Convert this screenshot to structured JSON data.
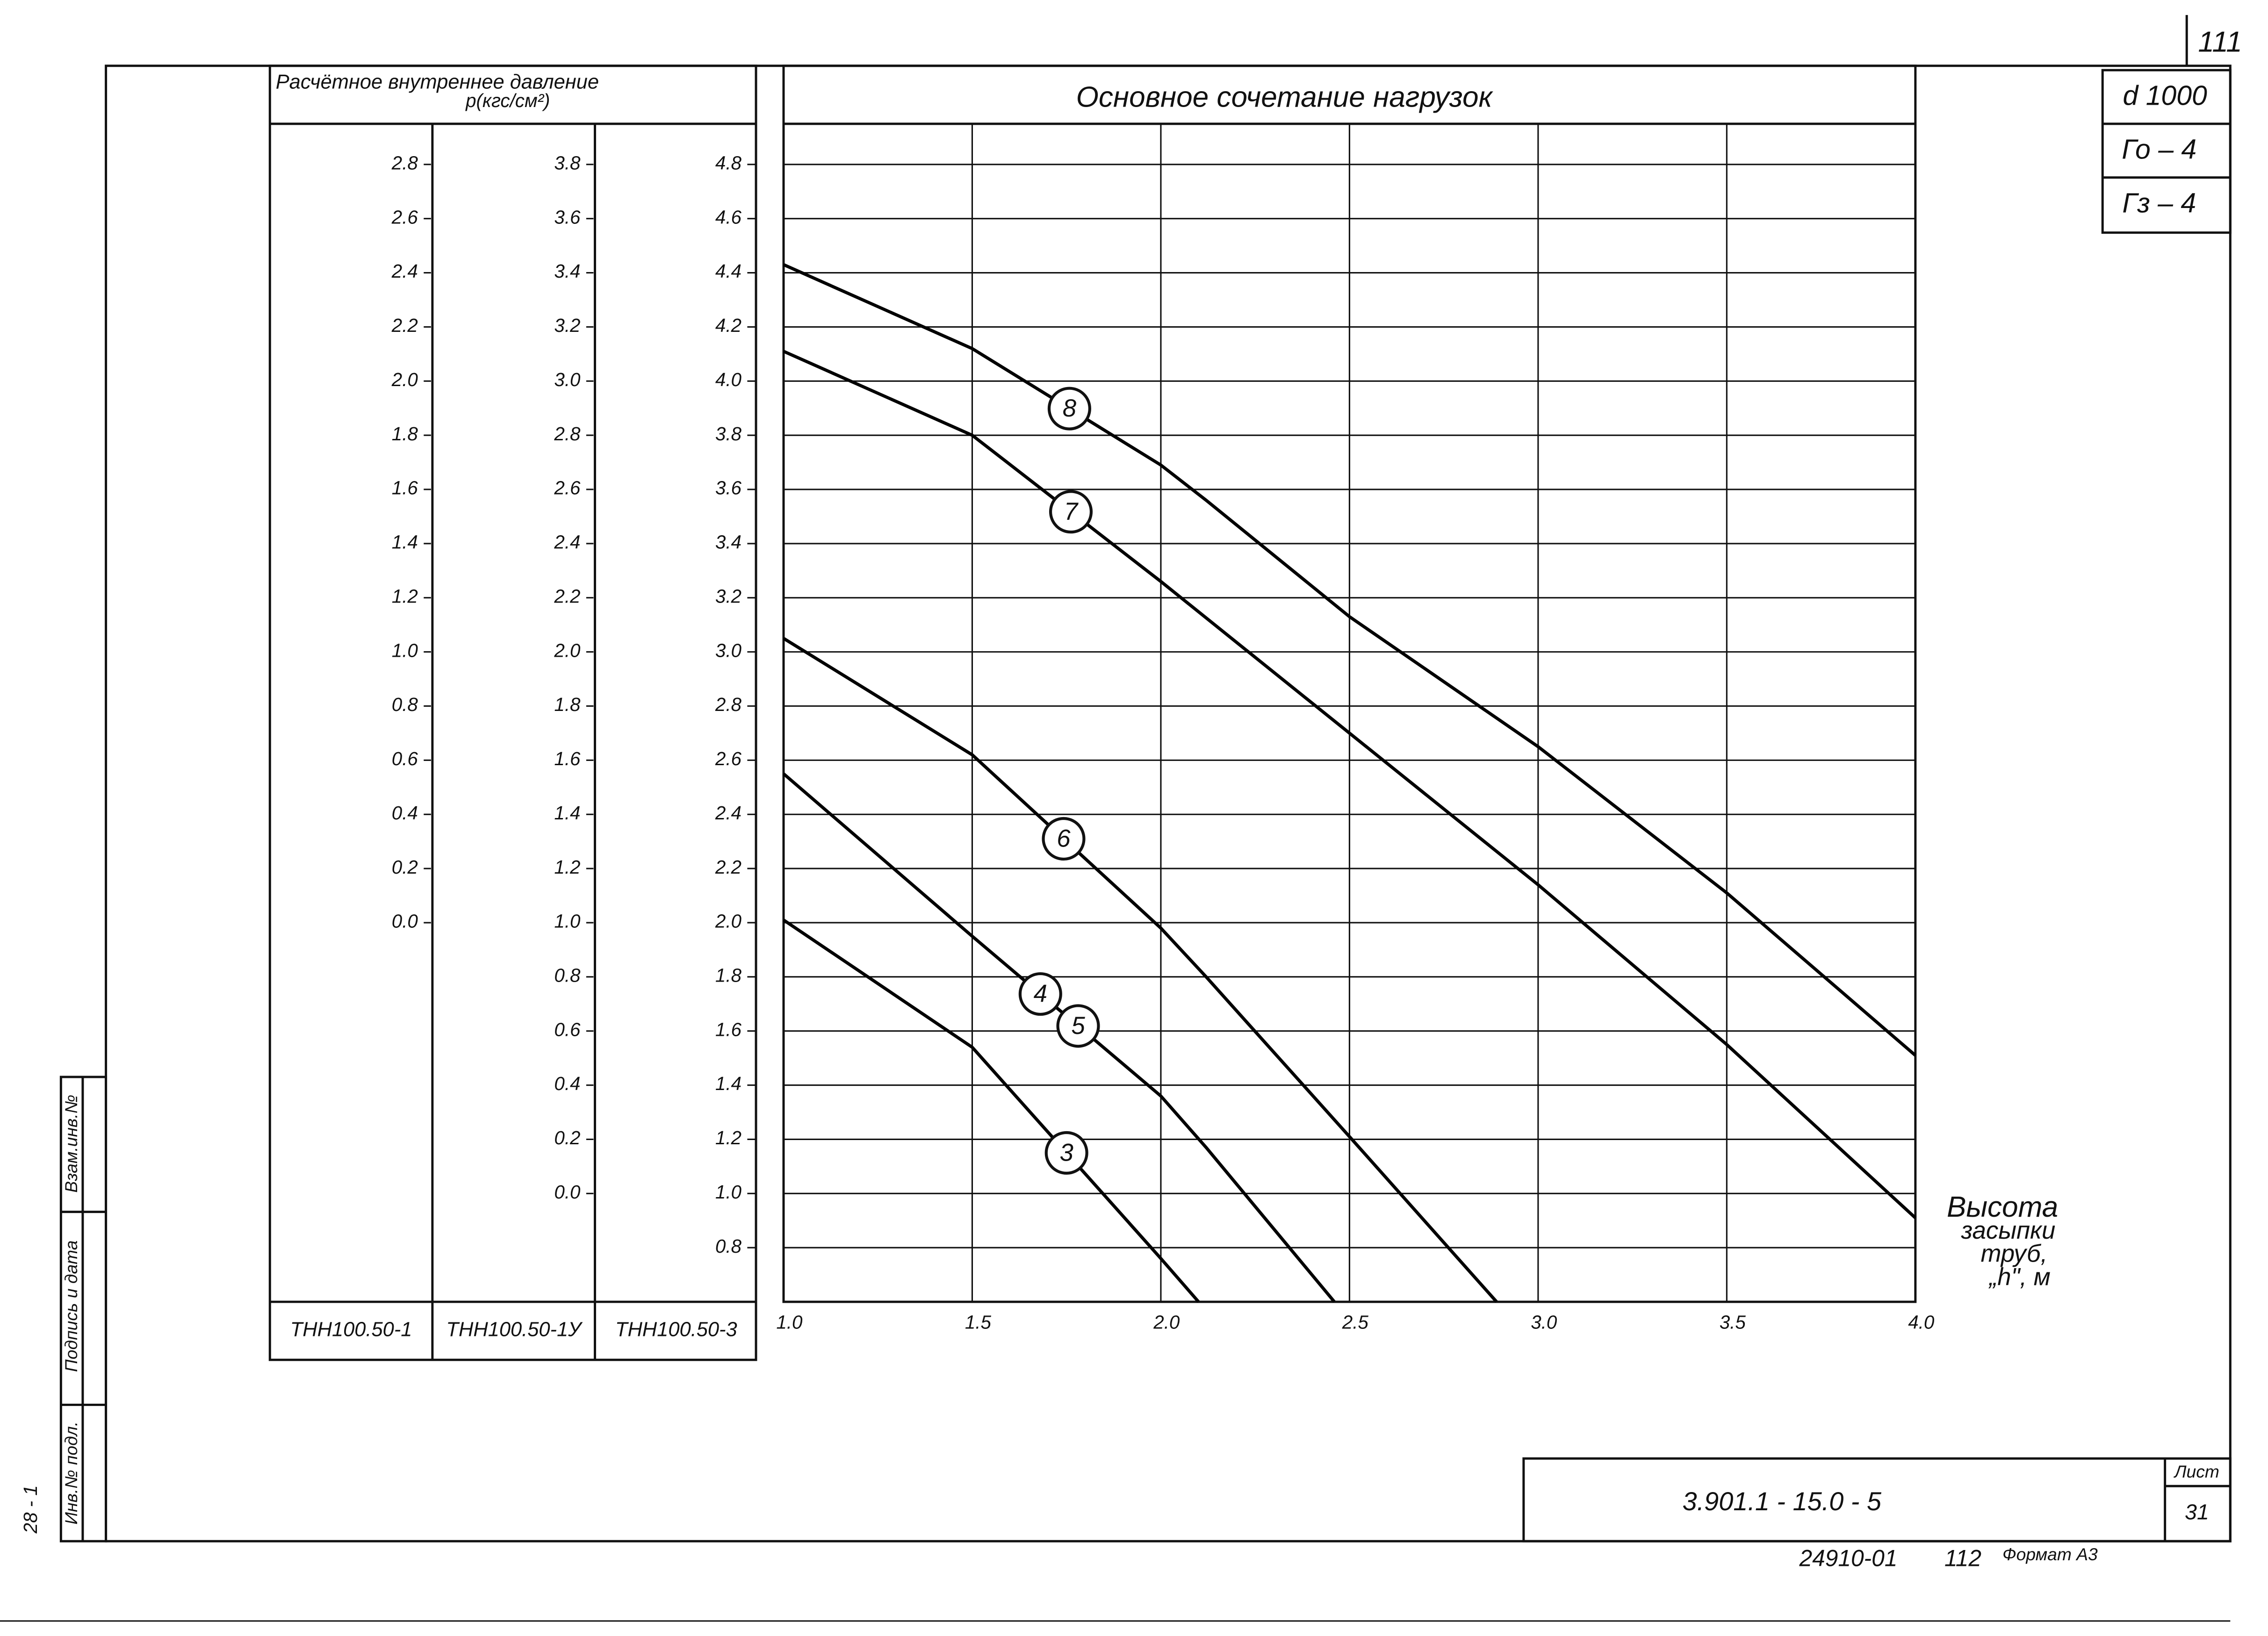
{
  "chart_data": {
    "type": "line",
    "title": "Основное сочетание нагрузок",
    "y_title": "Расчётное внутреннее давление",
    "y_unit": "p(кгс/см²)",
    "x_label_lines": [
      "Высота",
      "засыпки",
      "труб,",
      "„h\", м"
    ],
    "xlim": [
      1,
      4
    ],
    "xticks": [
      {
        "value": 1,
        "label": "1.0"
      },
      1.5,
      {
        "value": 2,
        "label": "2.0"
      },
      2.5,
      {
        "value": 3,
        "label": "3.0"
      },
      3.5,
      {
        "value": 4,
        "label": "4.0"
      }
    ],
    "ylim": [
      0.6,
      4.95
    ],
    "yticks": [
      0.8,
      {
        "value": 1,
        "label": "1.0"
      },
      1.2,
      1.4,
      1.6,
      1.8,
      {
        "value": 2,
        "label": "2.0"
      },
      2.2,
      2.4,
      2.6,
      2.8,
      {
        "value": 3,
        "label": "3.0"
      },
      3.2,
      3.4,
      3.6,
      3.8,
      {
        "value": 4,
        "label": "4.0"
      },
      4.2,
      4.4,
      4.6,
      4.8
    ],
    "y_name": "ТНН100.50-3",
    "y_scales": [
      {
        "name": "ТНН100.50-1",
        "ylim": [
          -1.4,
          2.95
        ],
        "yticks": [
          {
            "value": 0,
            "label": "0.0"
          },
          0.2,
          0.4,
          0.6,
          0.8,
          {
            "value": 1,
            "label": "1.0"
          },
          1.2,
          1.4,
          1.6,
          1.8,
          {
            "value": 2,
            "label": "2.0"
          },
          2.2,
          2.4,
          2.6,
          2.8
        ]
      },
      {
        "name": "ТНН100.50-1У",
        "ylim": [
          -0.4,
          3.95
        ],
        "yticks": [
          {
            "value": 0,
            "label": "0.0"
          },
          0.2,
          0.4,
          0.6,
          0.8,
          {
            "value": 1,
            "label": "1.0"
          },
          1.2,
          1.4,
          1.6,
          1.8,
          {
            "value": 2,
            "label": "2.0"
          },
          2.2,
          2.4,
          2.6,
          2.8,
          {
            "value": 3,
            "label": "3.0"
          },
          3.2,
          3.4,
          3.6,
          3.8
        ]
      }
    ],
    "grid": true,
    "color": "#000000",
    "series": [
      {
        "labels": [
          "3"
        ],
        "x": [
          1,
          1.5,
          2,
          2.1
        ],
        "values": [
          2.01,
          1.54,
          0.76,
          0.6
        ]
      },
      {
        "labels": [
          "4",
          "5"
        ],
        "x": [
          1,
          1.5,
          2,
          2.12,
          2.46
        ],
        "values": [
          2.55,
          1.95,
          1.36,
          1.17,
          0.6
        ]
      },
      {
        "labels": [
          "6"
        ],
        "x": [
          1,
          1.5,
          2,
          2.12,
          2.5,
          2.89
        ],
        "values": [
          3.05,
          2.62,
          1.98,
          1.8,
          1.21,
          0.6
        ]
      },
      {
        "labels": [
          "7"
        ],
        "x": [
          1,
          1.5,
          2,
          2.5,
          3,
          3.5,
          4
        ],
        "values": [
          4.11,
          3.8,
          3.26,
          2.7,
          2.14,
          1.55,
          0.91
        ]
      },
      {
        "labels": [
          "8"
        ],
        "x": [
          1,
          1.5,
          2,
          2.12,
          2.5,
          3,
          3.5,
          4
        ],
        "values": [
          4.43,
          4.12,
          3.69,
          3.56,
          3.13,
          2.65,
          2.11,
          1.51
        ]
      }
    ]
  },
  "stamp": {
    "diameter": "d 1000",
    "g0": "Го – 4",
    "g3": "Гз – 4",
    "page": "111",
    "code": "3.901.1 - 15.0 - 5",
    "sheet_label": "Лист",
    "sheet": "31"
  },
  "side": {
    "replace": "Взам.инв.№",
    "signature": "Подпись и дата",
    "inventory": "Инв.№ подл.",
    "number": "28 - 1"
  },
  "footer": {
    "sheet_code": "24910-01",
    "number": "112",
    "format": "Формат А3"
  }
}
